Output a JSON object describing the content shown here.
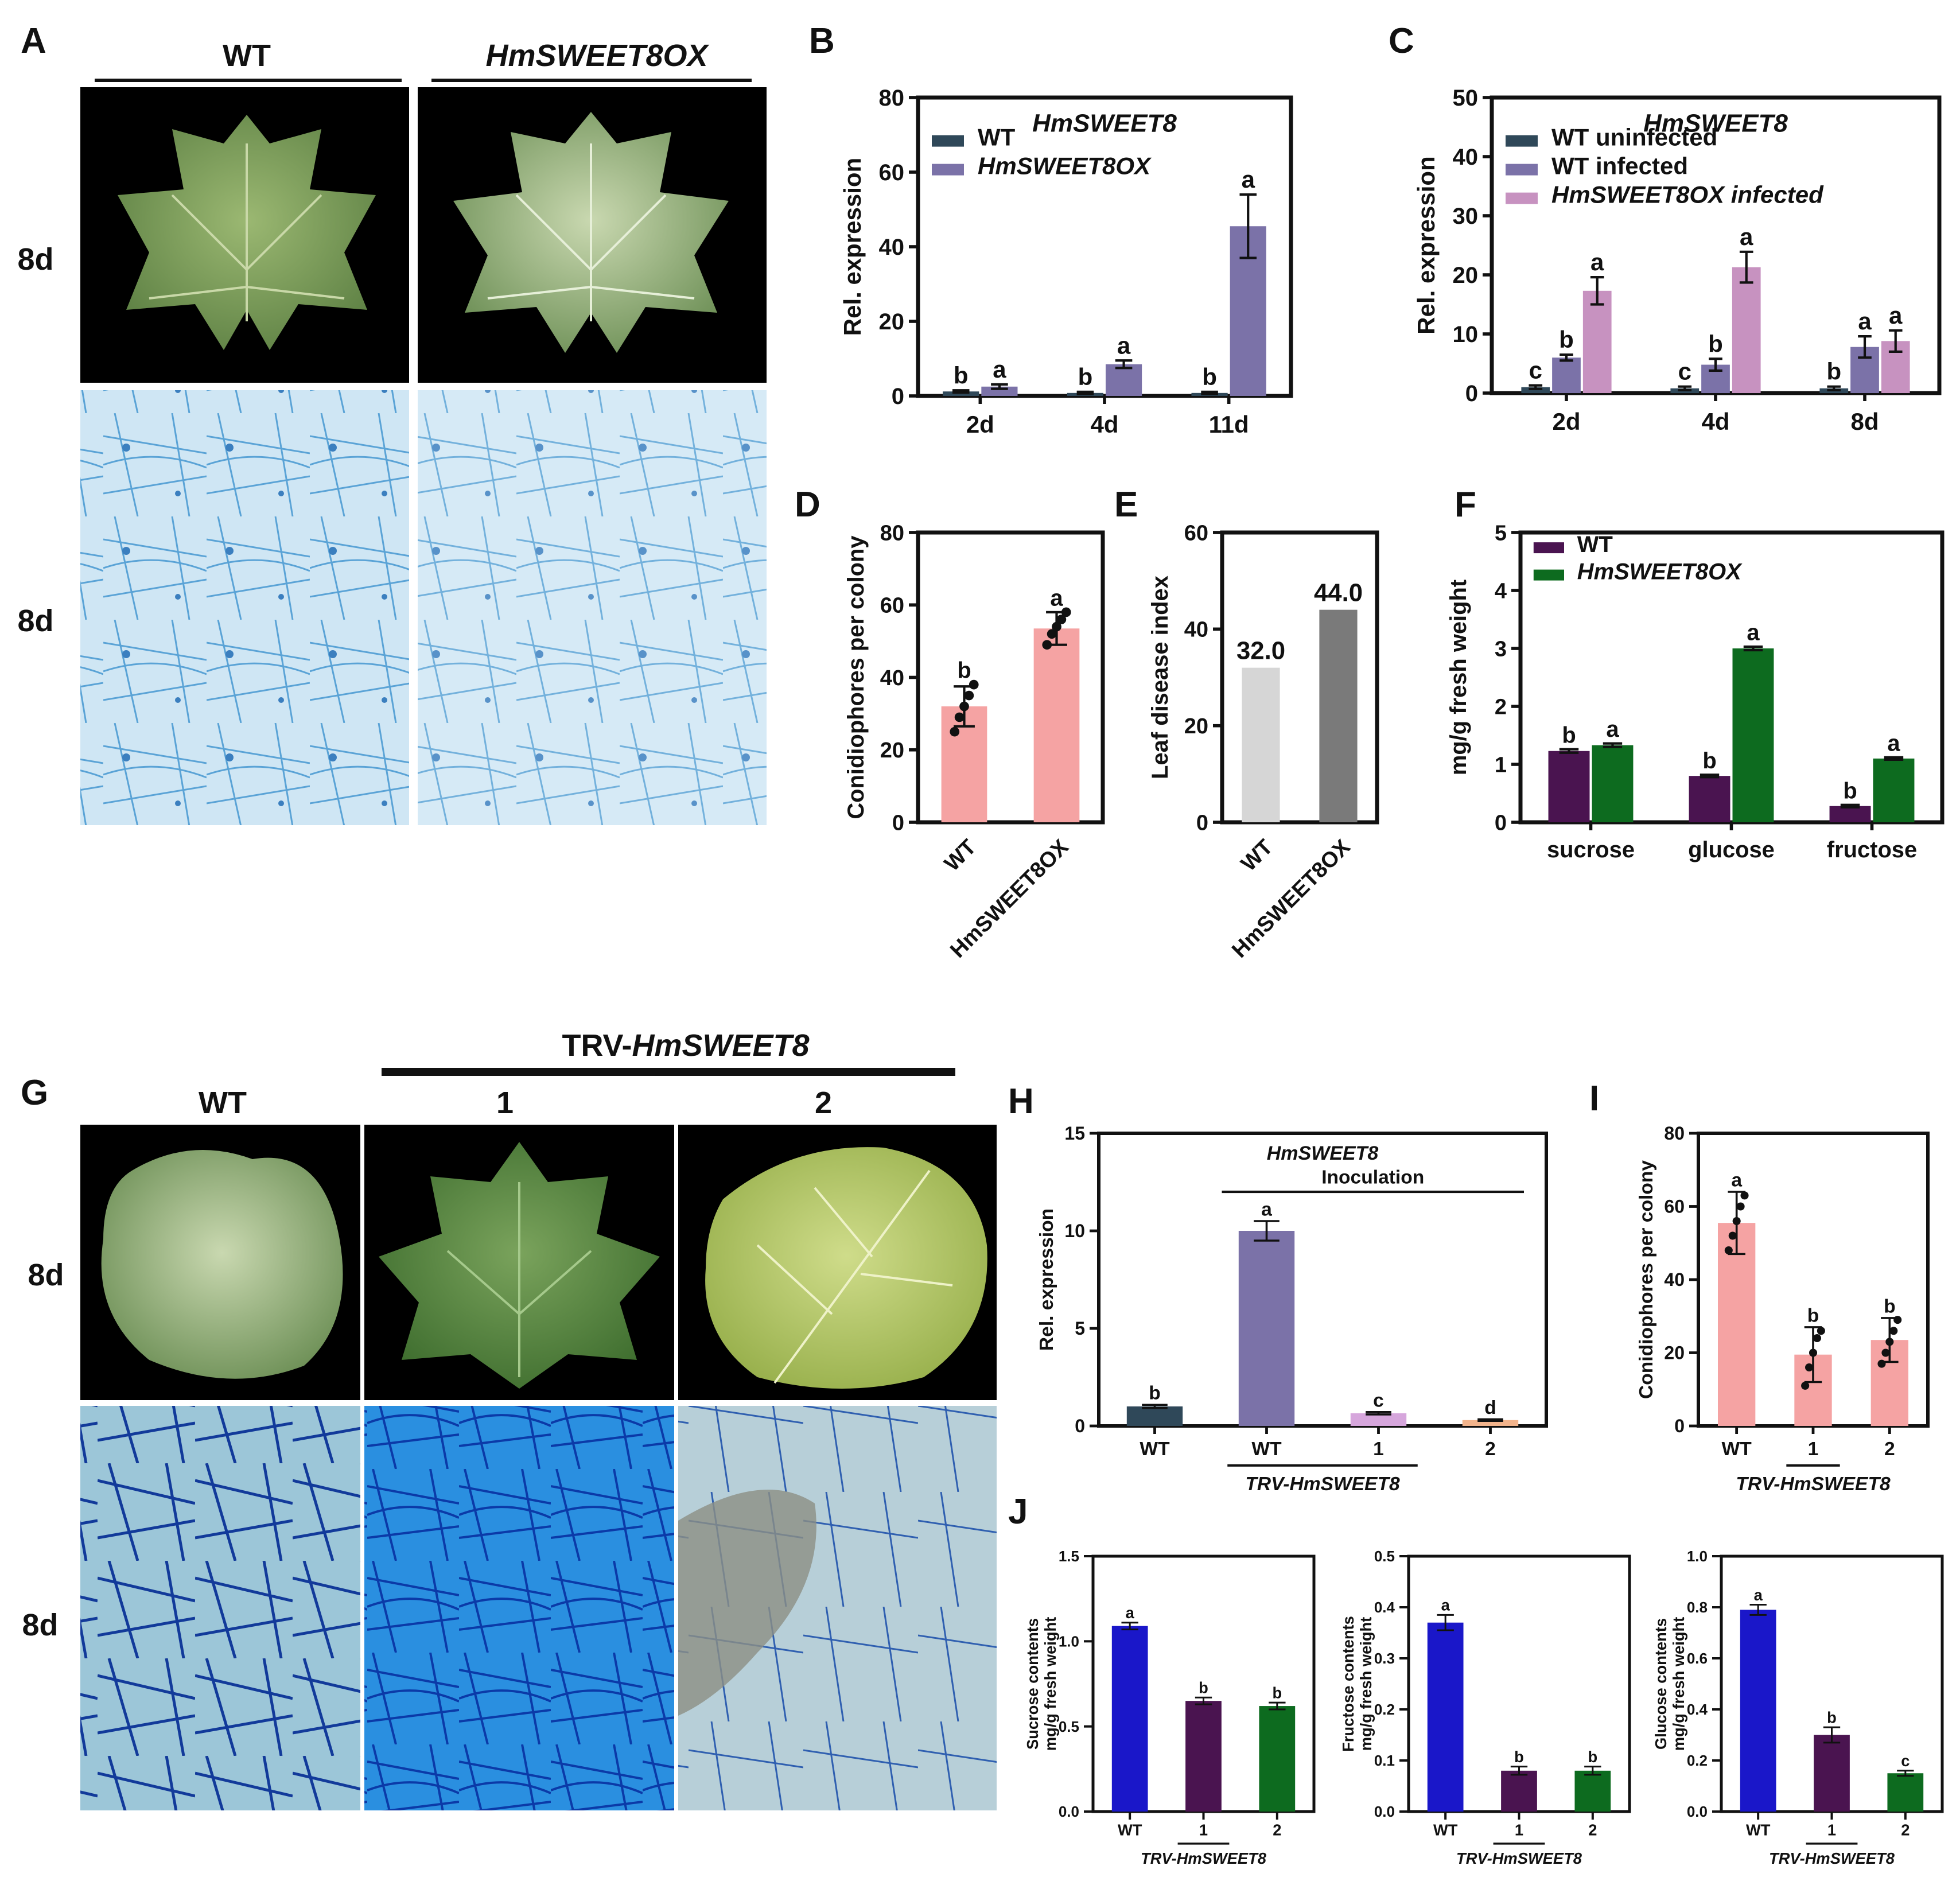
{
  "panel_labels": [
    "A",
    "B",
    "C",
    "D",
    "E",
    "F",
    "G",
    "H",
    "I",
    "J"
  ],
  "panel_A": {
    "columns": [
      "WT",
      "HmSWEET8OX"
    ],
    "row_labels": [
      "8d",
      "8d"
    ]
  },
  "panel_G": {
    "group_label_plain": "TRV-",
    "group_label_italic": "HmSWEET8",
    "columns": [
      "WT",
      "1",
      "2"
    ],
    "row_labels": [
      "8d",
      "8d"
    ]
  },
  "colors": {
    "wt_navy": "#2f4859",
    "ox_purple": "#7b72a8",
    "ox_pink": "#c792c0",
    "salmon": "#f5a3a3",
    "lightgray": "#d6d6d6",
    "darkgray": "#7a7a7a",
    "dark_purple": "#4a1450",
    "dark_green": "#0d6b1f",
    "blue": "#1a17c9",
    "lavender": "#d6a6dc",
    "peach": "#f3b48c"
  },
  "chart_data": [
    {
      "panel": "B",
      "type": "bar",
      "title": "HmSWEET8",
      "ylabel": "Rel. expression",
      "ylim": [
        0,
        80
      ],
      "yticks": [
        "0",
        "20",
        "40",
        "60",
        "80"
      ],
      "categories": [
        "2d",
        "4d",
        "11d"
      ],
      "series": [
        {
          "name": "WT",
          "color": "#2f4859",
          "values": [
            1.2,
            0.8,
            0.8
          ],
          "errors": [
            0.3,
            0.3,
            0.3
          ],
          "letters": [
            "b",
            "b",
            "b"
          ]
        },
        {
          "name": "HmSWEET8OX",
          "color": "#7b72a8",
          "values": [
            2.5,
            8.5,
            45.5
          ],
          "errors": [
            0.6,
            1.0,
            8.5
          ],
          "letters": [
            "a",
            "a",
            "a"
          ]
        }
      ],
      "legend_names": [
        "WT",
        "HmSWEET8OX"
      ],
      "legend_placement": "top-left"
    },
    {
      "panel": "C",
      "type": "bar",
      "title": "HmSWEET8",
      "ylabel": "Rel. expression",
      "ylim": [
        0,
        50
      ],
      "yticks": [
        "0",
        "10",
        "20",
        "30",
        "40",
        "50"
      ],
      "categories": [
        "2d",
        "4d",
        "8d"
      ],
      "series": [
        {
          "name": "WT uninfected",
          "color": "#2f4859",
          "values": [
            1.0,
            0.8,
            0.8
          ],
          "errors": [
            0.3,
            0.3,
            0.3
          ],
          "letters": [
            "c",
            "c",
            "b"
          ]
        },
        {
          "name": "WT infected",
          "color": "#7b72a8",
          "values": [
            6.0,
            4.8,
            7.8
          ],
          "errors": [
            0.5,
            1.0,
            1.8
          ],
          "letters": [
            "b",
            "b",
            "a"
          ]
        },
        {
          "name": "HmSWEET8OX infected",
          "color": "#c792c0",
          "values": [
            17.3,
            21.3,
            8.8
          ],
          "errors": [
            2.3,
            2.6,
            1.8
          ],
          "letters": [
            "a",
            "a",
            "a"
          ]
        }
      ],
      "legend_names": [
        "WT uninfected",
        "WT infected",
        "HmSWEET8OX infected"
      ],
      "legend_placement": "top-left"
    },
    {
      "panel": "D",
      "type": "bar",
      "ylabel": "Conidiophores per colony",
      "ylim": [
        0,
        80
      ],
      "yticks": [
        "0",
        "20",
        "40",
        "60",
        "80"
      ],
      "categories": [
        "WT",
        "HmSWEET8OX"
      ],
      "values": [
        32,
        53.5
      ],
      "errors": [
        5.5,
        4.5
      ],
      "letters": [
        "b",
        "a"
      ],
      "colors": [
        "#f5a3a3",
        "#f5a3a3"
      ],
      "points": [
        [
          25,
          29,
          32,
          35,
          38
        ],
        [
          49,
          52,
          54,
          56,
          58
        ]
      ]
    },
    {
      "panel": "E",
      "type": "bar",
      "ylabel": "Leaf disease index",
      "ylim": [
        0,
        60
      ],
      "yticks": [
        "0",
        "20",
        "40",
        "60"
      ],
      "categories": [
        "WT",
        "HmSWEET8OX"
      ],
      "values": [
        32.0,
        44.0
      ],
      "value_labels": [
        "32.0",
        "44.0"
      ],
      "colors": [
        "#d6d6d6",
        "#7a7a7a"
      ]
    },
    {
      "panel": "F",
      "type": "bar",
      "ylabel": "mg/g fresh weight",
      "ylim": [
        0,
        5
      ],
      "yticks": [
        "0",
        "1",
        "2",
        "3",
        "4",
        "5"
      ],
      "categories": [
        "sucrose",
        "glucose",
        "fructose"
      ],
      "series": [
        {
          "name": "WT",
          "color": "#4a1450",
          "values": [
            1.23,
            0.8,
            0.28
          ],
          "errors": [
            0.03,
            0.02,
            0.02
          ],
          "letters": [
            "b",
            "b",
            "b"
          ]
        },
        {
          "name": "HmSWEET8OX",
          "color": "#0d6b1f",
          "values": [
            1.33,
            3.0,
            1.1
          ],
          "errors": [
            0.03,
            0.03,
            0.02
          ],
          "letters": [
            "a",
            "a",
            "a"
          ]
        }
      ],
      "legend_names": [
        "WT",
        "HmSWEET8OX"
      ],
      "legend_placement": "top-left"
    },
    {
      "panel": "H",
      "type": "bar",
      "title": "HmSWEET8",
      "annotation": "Inoculation",
      "ylabel": "Rel. expression",
      "ylim": [
        0,
        15
      ],
      "yticks": [
        "0",
        "5",
        "10",
        "15"
      ],
      "categories": [
        "WT",
        "WT",
        "1",
        "2"
      ],
      "group_label": "TRV-HmSWEET8",
      "values": [
        1.0,
        10.0,
        0.65,
        0.3
      ],
      "errors": [
        0.08,
        0.5,
        0.06,
        0.04
      ],
      "letters": [
        "b",
        "a",
        "c",
        "d"
      ],
      "colors": [
        "#2f4859",
        "#7b72a8",
        "#d6a6dc",
        "#f3b48c"
      ]
    },
    {
      "panel": "I",
      "type": "bar",
      "ylabel": "Conidiophores per colony",
      "ylim": [
        0,
        80
      ],
      "yticks": [
        "0",
        "20",
        "40",
        "60",
        "80"
      ],
      "categories": [
        "WT",
        "1",
        "2"
      ],
      "group_label": "TRV-HmSWEET8",
      "values": [
        55.5,
        19.5,
        23.5
      ],
      "errors": [
        8.5,
        7.5,
        6.0
      ],
      "letters": [
        "a",
        "b",
        "b"
      ],
      "colors": [
        "#f5a3a3",
        "#f5a3a3",
        "#f5a3a3"
      ],
      "points": [
        [
          48,
          52,
          56,
          60,
          63
        ],
        [
          11,
          16,
          20,
          24,
          26
        ],
        [
          17,
          20,
          23,
          26,
          29
        ]
      ]
    },
    {
      "panel": "J1",
      "type": "bar",
      "ylabel": [
        "Sucrose contents",
        "mg/g fresh weight"
      ],
      "ylim": [
        0,
        1.5
      ],
      "yticks": [
        "0.0",
        "0.5",
        "1.0",
        "1.5"
      ],
      "categories": [
        "WT",
        "1",
        "2"
      ],
      "group_label": "TRV-HmSWEET8",
      "values": [
        1.09,
        0.65,
        0.62
      ],
      "errors": [
        0.02,
        0.02,
        0.02
      ],
      "letters": [
        "a",
        "b",
        "b"
      ],
      "colors": [
        "#1a17c9",
        "#4a1450",
        "#0d6b1f"
      ]
    },
    {
      "panel": "J2",
      "type": "bar",
      "ylabel": [
        "Fructose contents",
        "mg/g fresh weight"
      ],
      "ylim": [
        0,
        0.5
      ],
      "yticks": [
        "0.0",
        "0.1",
        "0.2",
        "0.3",
        "0.4",
        "0.5"
      ],
      "categories": [
        "WT",
        "1",
        "2"
      ],
      "group_label": "TRV-HmSWEET8",
      "values": [
        0.37,
        0.08,
        0.08
      ],
      "errors": [
        0.015,
        0.008,
        0.008
      ],
      "letters": [
        "a",
        "b",
        "b"
      ],
      "colors": [
        "#1a17c9",
        "#4a1450",
        "#0d6b1f"
      ]
    },
    {
      "panel": "J3",
      "type": "bar",
      "ylabel": [
        "Glucose contents",
        "mg/g fresh weight"
      ],
      "ylim": [
        0,
        1.0
      ],
      "yticks": [
        "0.0",
        "0.2",
        "0.4",
        "0.6",
        "0.8",
        "1.0"
      ],
      "categories": [
        "WT",
        "1",
        "2"
      ],
      "group_label": "TRV-HmSWEET8",
      "values": [
        0.79,
        0.3,
        0.15
      ],
      "errors": [
        0.02,
        0.03,
        0.01
      ],
      "letters": [
        "a",
        "b",
        "c"
      ],
      "colors": [
        "#1a17c9",
        "#4a1450",
        "#0d6b1f"
      ]
    }
  ]
}
